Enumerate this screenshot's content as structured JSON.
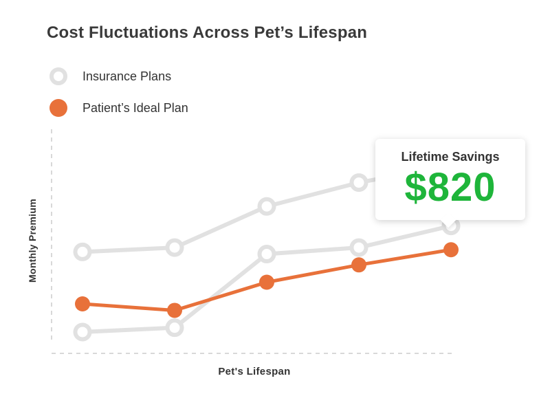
{
  "chart_data": {
    "type": "line",
    "title": "Cost Fluctuations Across Pet’s Lifespan",
    "xlabel": "Pet's Lifespan",
    "ylabel": "Monthly Premium",
    "x": [
      1,
      2,
      3,
      4,
      5
    ],
    "series": [
      {
        "name": "Insurance Plans",
        "color": "#e1e1e1",
        "values": [
          44,
          46,
          65,
          76,
          84
        ]
      },
      {
        "name": "Insurance Plans",
        "color": "#e1e1e1",
        "values": [
          7,
          9,
          43,
          46,
          56
        ]
      },
      {
        "name": "Patient’s Ideal Plan",
        "color": "#e8713a",
        "values": [
          20,
          17,
          30,
          38,
          45
        ]
      }
    ],
    "ylim": [
      0,
      100
    ],
    "grid": false,
    "legend": [
      {
        "label": "Insurance Plans",
        "style": "hollow",
        "color": "#e1e1e1"
      },
      {
        "label": "Patient’s Ideal Plan",
        "style": "filled",
        "color": "#e8713a"
      }
    ],
    "legend_position": "top-left",
    "annotation": {
      "label": "Lifetime Savings",
      "value": "$820",
      "value_color": "#1eb53a",
      "attached_to": "last point of Patient’s Ideal Plan"
    }
  }
}
